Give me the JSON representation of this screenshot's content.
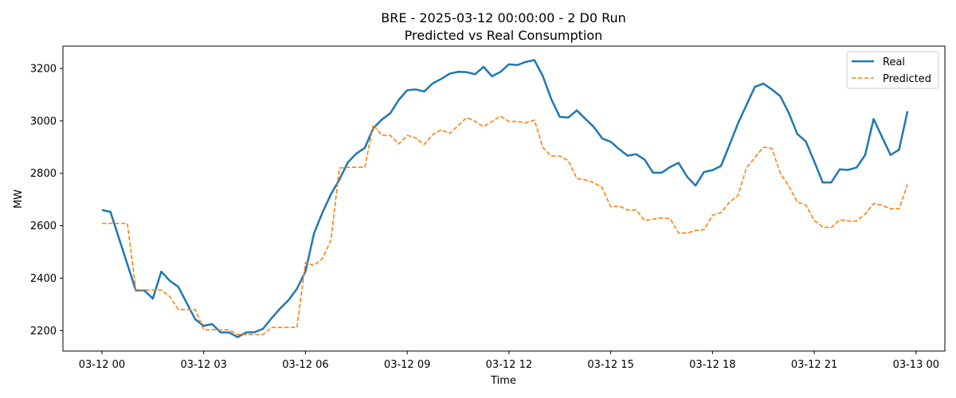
{
  "chart_data": {
    "type": "line",
    "title": "BRE - 2025-03-12 00:00:00 - 2 D0 Run",
    "subtitle": "Predicted vs Real Consumption",
    "xlabel": "Time",
    "ylabel": "MW",
    "x_start": "03-12 00:00",
    "x_step_minutes": 15,
    "xlim_hours": [
      -1.15,
      24.85
    ],
    "ylim": [
      2122,
      3285
    ],
    "grid": false,
    "legend_position": "top-right",
    "x_ticks": [
      {
        "hours": 0,
        "label": "03-12 00"
      },
      {
        "hours": 3,
        "label": "03-12 03"
      },
      {
        "hours": 6,
        "label": "03-12 06"
      },
      {
        "hours": 9,
        "label": "03-12 09"
      },
      {
        "hours": 12,
        "label": "03-12 12"
      },
      {
        "hours": 15,
        "label": "03-12 15"
      },
      {
        "hours": 18,
        "label": "03-12 18"
      },
      {
        "hours": 21,
        "label": "03-12 21"
      },
      {
        "hours": 24,
        "label": "03-13 00"
      }
    ],
    "y_ticks": [
      2200,
      2400,
      2600,
      2800,
      3000,
      3200
    ],
    "series": [
      {
        "name": "Real",
        "color": "#1f77b4",
        "style": "solid",
        "values": [
          2660,
          2653,
          2553,
          2453,
          2353,
          2353,
          2322,
          2425,
          2390,
          2367,
          2305,
          2243,
          2218,
          2225,
          2193,
          2193,
          2175,
          2193,
          2194,
          2207,
          2247,
          2284,
          2316,
          2360,
          2425,
          2570,
          2650,
          2720,
          2776,
          2842,
          2875,
          2897,
          2972,
          3005,
          3029,
          3080,
          3117,
          3120,
          3112,
          3143,
          3160,
          3180,
          3187,
          3186,
          3178,
          3206,
          3170,
          3187,
          3216,
          3213,
          3225,
          3232,
          3170,
          3082,
          3015,
          3013,
          3040,
          3008,
          2977,
          2933,
          2920,
          2892,
          2867,
          2873,
          2852,
          2802,
          2802,
          2824,
          2840,
          2787,
          2753,
          2805,
          2812,
          2828,
          2908,
          2990,
          3060,
          3130,
          3142,
          3120,
          3094,
          3030,
          2950,
          2922,
          2845,
          2765,
          2765,
          2815,
          2813,
          2822,
          2870,
          3007,
          2938,
          2870,
          2890,
          3037
        ]
      },
      {
        "name": "Predicted",
        "color": "#ff7f0e",
        "style": "dashed",
        "values": [
          2609,
          2609,
          2609,
          2609,
          2355,
          2355,
          2355,
          2355,
          2330,
          2280,
          2280,
          2280,
          2203,
          2203,
          2203,
          2203,
          2185,
          2185,
          2185,
          2185,
          2212,
          2212,
          2212,
          2212,
          2460,
          2448,
          2475,
          2545,
          2820,
          2823,
          2823,
          2823,
          2985,
          2945,
          2945,
          2912,
          2945,
          2935,
          2910,
          2948,
          2966,
          2952,
          2982,
          3013,
          2998,
          2978,
          2998,
          3018,
          2998,
          2998,
          2993,
          3003,
          2898,
          2866,
          2866,
          2848,
          2780,
          2775,
          2765,
          2745,
          2672,
          2675,
          2660,
          2660,
          2620,
          2625,
          2630,
          2627,
          2572,
          2572,
          2582,
          2585,
          2640,
          2650,
          2690,
          2715,
          2820,
          2860,
          2900,
          2895,
          2800,
          2752,
          2690,
          2680,
          2620,
          2595,
          2593,
          2623,
          2618,
          2618,
          2645,
          2685,
          2678,
          2665,
          2665,
          2758
        ]
      }
    ]
  }
}
